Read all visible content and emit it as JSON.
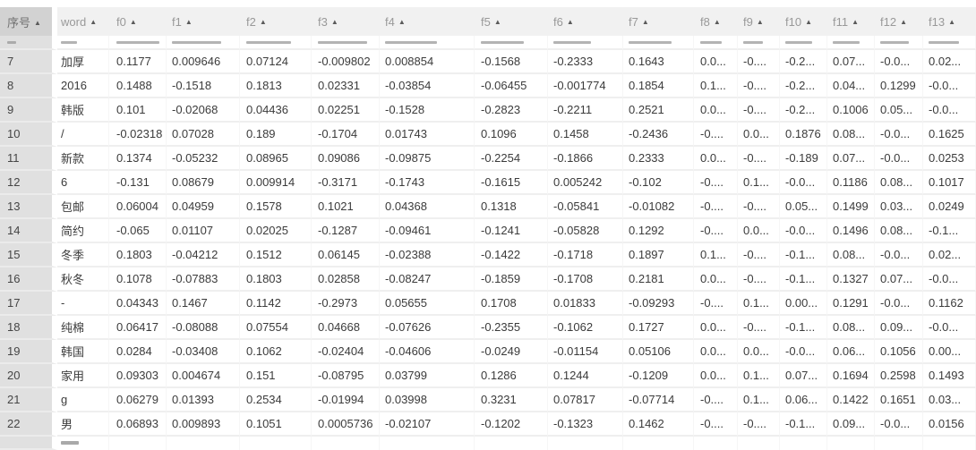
{
  "table": {
    "columns": [
      {
        "key": "index",
        "label": "序号",
        "sort_icon": "▲"
      },
      {
        "key": "word",
        "label": "word",
        "sort_icon": "▲"
      },
      {
        "key": "f0",
        "label": "f0",
        "sort_icon": "▲"
      },
      {
        "key": "f1",
        "label": "f1",
        "sort_icon": "▲"
      },
      {
        "key": "f2",
        "label": "f2",
        "sort_icon": "▲"
      },
      {
        "key": "f3",
        "label": "f3",
        "sort_icon": "▲"
      },
      {
        "key": "f4",
        "label": "f4",
        "sort_icon": "▲"
      },
      {
        "key": "f5",
        "label": "f5",
        "sort_icon": "▲"
      },
      {
        "key": "f6",
        "label": "f6",
        "sort_icon": "▲"
      },
      {
        "key": "f7",
        "label": "f7",
        "sort_icon": "▲"
      },
      {
        "key": "f8",
        "label": "f8",
        "sort_icon": "▲"
      },
      {
        "key": "f9",
        "label": "f9",
        "sort_icon": "▲"
      },
      {
        "key": "f10",
        "label": "f10",
        "sort_icon": "▲"
      },
      {
        "key": "f11",
        "label": "f11",
        "sort_icon": "▲"
      },
      {
        "key": "f12",
        "label": "f12",
        "sort_icon": "▲"
      },
      {
        "key": "f13",
        "label": "f13",
        "sort_icon": "▲"
      }
    ],
    "rows": [
      {
        "index": "7",
        "word": "加厚",
        "values": [
          "0.1177",
          "0.009646",
          "0.07124",
          "-0.009802",
          "0.008854",
          "-0.1568",
          "-0.2333",
          "0.1643",
          "0.0...",
          "-0....",
          "-0.2...",
          "0.07...",
          "-0.0...",
          "0.02..."
        ]
      },
      {
        "index": "8",
        "word": "2016",
        "values": [
          "0.1488",
          "-0.1518",
          "0.1813",
          "0.02331",
          "-0.03854",
          "-0.06455",
          "-0.001774",
          "0.1854",
          "0.1...",
          "-0....",
          "-0.2...",
          "0.04...",
          "0.1299",
          "-0.0..."
        ]
      },
      {
        "index": "9",
        "word": "韩版",
        "values": [
          "0.101",
          "-0.02068",
          "0.04436",
          "0.02251",
          "-0.1528",
          "-0.2823",
          "-0.2211",
          "0.2521",
          "0.0...",
          "-0....",
          "-0.2...",
          "0.1006",
          "0.05...",
          "-0.0..."
        ]
      },
      {
        "index": "10",
        "word": "/",
        "values": [
          "-0.02318",
          "0.07028",
          "0.189",
          "-0.1704",
          "0.01743",
          "0.1096",
          "0.1458",
          "-0.2436",
          "-0....",
          "0.0...",
          "0.1876",
          "0.08...",
          "-0.0...",
          "0.1625"
        ]
      },
      {
        "index": "11",
        "word": "新款",
        "values": [
          "0.1374",
          "-0.05232",
          "0.08965",
          "0.09086",
          "-0.09875",
          "-0.2254",
          "-0.1866",
          "0.2333",
          "0.0...",
          "-0....",
          "-0.189",
          "0.07...",
          "-0.0...",
          "0.0253"
        ]
      },
      {
        "index": "12",
        "word": "6",
        "values": [
          "-0.131",
          "0.08679",
          "0.009914",
          "-0.3171",
          "-0.1743",
          "-0.1615",
          "0.005242",
          "-0.102",
          "-0....",
          "0.1...",
          "-0.0...",
          "0.1186",
          "0.08...",
          "0.1017"
        ]
      },
      {
        "index": "13",
        "word": "包邮",
        "values": [
          "0.06004",
          "0.04959",
          "0.1578",
          "0.1021",
          "0.04368",
          "0.1318",
          "-0.05841",
          "-0.01082",
          "-0....",
          "-0....",
          "0.05...",
          "0.1499",
          "0.03...",
          "0.0249"
        ]
      },
      {
        "index": "14",
        "word": "简约",
        "values": [
          "-0.065",
          "0.01107",
          "0.02025",
          "-0.1287",
          "-0.09461",
          "-0.1241",
          "-0.05828",
          "0.1292",
          "-0....",
          "0.0...",
          "-0.0...",
          "0.1496",
          "0.08...",
          "-0.1..."
        ]
      },
      {
        "index": "15",
        "word": "冬季",
        "values": [
          "0.1803",
          "-0.04212",
          "0.1512",
          "0.06145",
          "-0.02388",
          "-0.1422",
          "-0.1718",
          "0.1897",
          "0.1...",
          "-0....",
          "-0.1...",
          "0.08...",
          "-0.0...",
          "0.02..."
        ]
      },
      {
        "index": "16",
        "word": "秋冬",
        "values": [
          "0.1078",
          "-0.07883",
          "0.1803",
          "0.02858",
          "-0.08247",
          "-0.1859",
          "-0.1708",
          "0.2181",
          "0.0...",
          "-0....",
          "-0.1...",
          "0.1327",
          "0.07...",
          "-0.0..."
        ]
      },
      {
        "index": "17",
        "word": "-",
        "values": [
          "0.04343",
          "0.1467",
          "0.1142",
          "-0.2973",
          "0.05655",
          "0.1708",
          "0.01833",
          "-0.09293",
          "-0....",
          "0.1...",
          "0.00...",
          "0.1291",
          "-0.0...",
          "0.1162"
        ]
      },
      {
        "index": "18",
        "word": "纯棉",
        "values": [
          "0.06417",
          "-0.08088",
          "0.07554",
          "0.04668",
          "-0.07626",
          "-0.2355",
          "-0.1062",
          "0.1727",
          "0.0...",
          "-0....",
          "-0.1...",
          "0.08...",
          "0.09...",
          "-0.0..."
        ]
      },
      {
        "index": "19",
        "word": "韩国",
        "values": [
          "0.0284",
          "-0.03408",
          "0.1062",
          "-0.02404",
          "-0.04606",
          "-0.0249",
          "-0.01154",
          "0.05106",
          "0.0...",
          "0.0...",
          "-0.0...",
          "0.06...",
          "0.1056",
          "0.00..."
        ]
      },
      {
        "index": "20",
        "word": "家用",
        "values": [
          "0.09303",
          "0.004674",
          "0.151",
          "-0.08795",
          "0.03799",
          "0.1286",
          "0.1244",
          "-0.1209",
          "0.0...",
          "0.1...",
          "0.07...",
          "0.1694",
          "0.2598",
          "0.1493"
        ]
      },
      {
        "index": "21",
        "word": "g",
        "values": [
          "0.06279",
          "0.01393",
          "0.2534",
          "-0.01994",
          "0.03998",
          "0.3231",
          "0.07817",
          "-0.07714",
          "-0....",
          "0.1...",
          "0.06...",
          "0.1422",
          "0.1651",
          "0.03..."
        ]
      },
      {
        "index": "22",
        "word": "男",
        "values": [
          "0.06893",
          "0.009893",
          "0.1051",
          "0.0005736",
          "-0.02107",
          "-0.1202",
          "-0.1323",
          "0.1462",
          "-0....",
          "-0....",
          "-0.1...",
          "0.09...",
          "-0.0...",
          "0.0156"
        ]
      }
    ],
    "clipped_partial_row_above": true,
    "clipped_partial_row_below": true
  },
  "colors": {
    "header_bg": "#f1f1f1",
    "index_header_bg": "#d2d2d2",
    "index_cell_bg": "#e0e0e0",
    "row_border": "#efefef",
    "header_text": "#999999",
    "cell_text": "#3b3b3b"
  }
}
